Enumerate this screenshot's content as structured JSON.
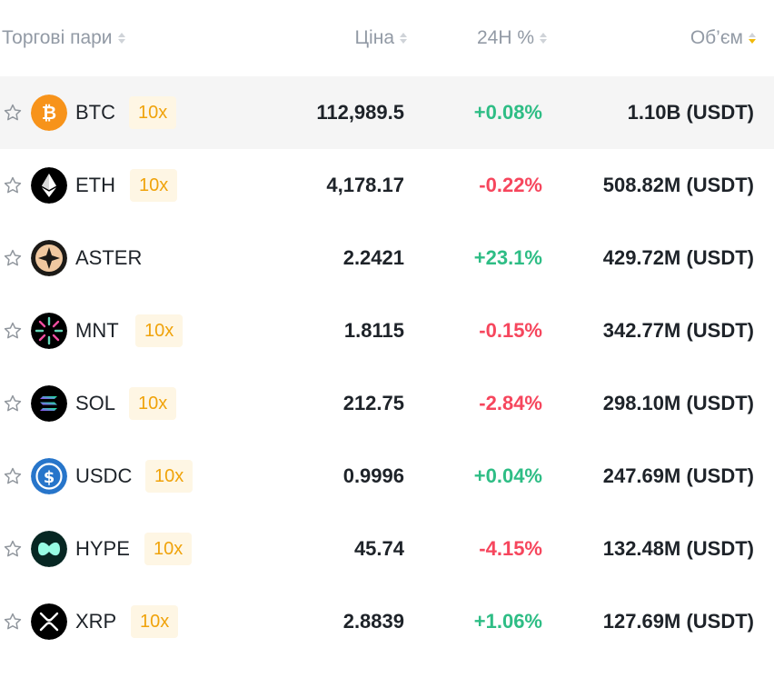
{
  "header": {
    "pair_label": "Торгові пари",
    "price_label": "Ціна",
    "change_label": "24H %",
    "volume_label": "Об’єм"
  },
  "colors": {
    "positive": "#2ebd85",
    "negative": "#f6465d",
    "accent": "#f0b90b"
  },
  "rows": [
    {
      "symbol": "BTC",
      "leverage": "10x",
      "price": "112,989.5",
      "change": "+0.08%",
      "volume": "1.10B (USDT)",
      "icon": "bitcoin-icon"
    },
    {
      "symbol": "ETH",
      "leverage": "10x",
      "price": "4,178.17",
      "change": "-0.22%",
      "volume": "508.82M (USDT)",
      "icon": "ethereum-icon"
    },
    {
      "symbol": "ASTER",
      "leverage": "",
      "price": "2.2421",
      "change": "+23.1%",
      "volume": "429.72M (USDT)",
      "icon": "aster-icon"
    },
    {
      "symbol": "MNT",
      "leverage": "10x",
      "price": "1.8115",
      "change": "-0.15%",
      "volume": "342.77M (USDT)",
      "icon": "mantle-icon"
    },
    {
      "symbol": "SOL",
      "leverage": "10x",
      "price": "212.75",
      "change": "-2.84%",
      "volume": "298.10M (USDT)",
      "icon": "solana-icon"
    },
    {
      "symbol": "USDC",
      "leverage": "10x",
      "price": "0.9996",
      "change": "+0.04%",
      "volume": "247.69M (USDT)",
      "icon": "usdc-icon"
    },
    {
      "symbol": "HYPE",
      "leverage": "10x",
      "price": "45.74",
      "change": "-4.15%",
      "volume": "132.48M (USDT)",
      "icon": "hyperliquid-icon"
    },
    {
      "symbol": "XRP",
      "leverage": "10x",
      "price": "2.8839",
      "change": "+1.06%",
      "volume": "127.69M (USDT)",
      "icon": "xrp-icon"
    }
  ]
}
